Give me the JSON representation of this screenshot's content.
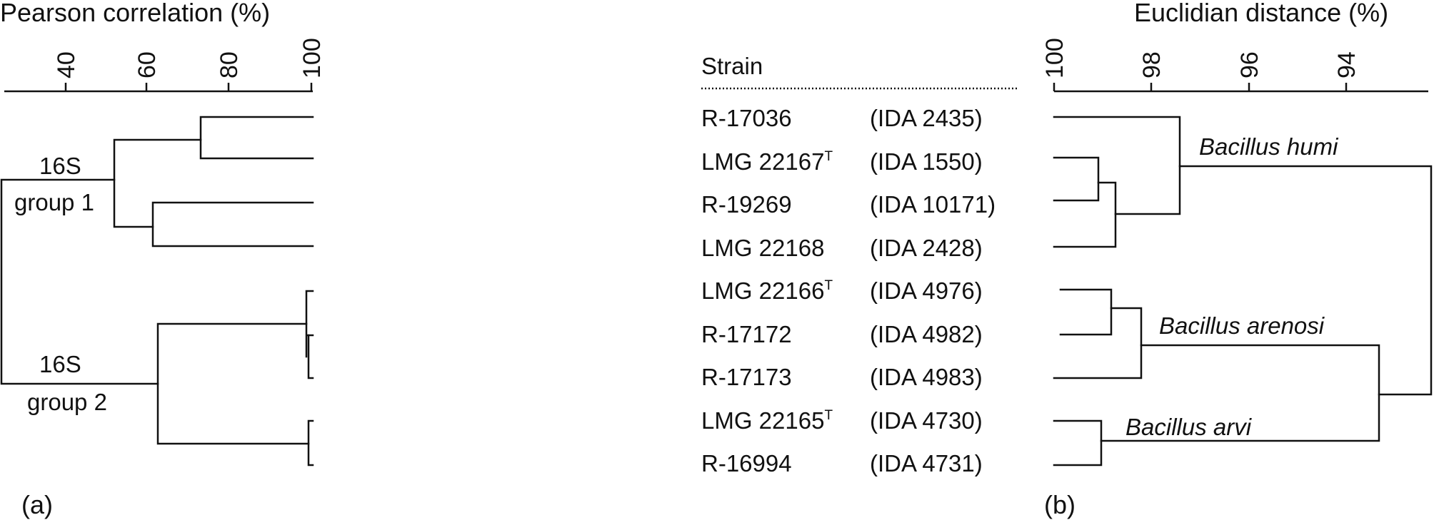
{
  "panel_a": {
    "label": "(a)",
    "axis_title": "Pearson correlation (%)",
    "ticks": [
      "40",
      "60",
      "80",
      "100"
    ],
    "group1_line1": "16S",
    "group1_line2": "group 1",
    "group2_line1": "16S",
    "group2_line2": "group 2"
  },
  "panel_b": {
    "label": "(b)",
    "axis_title": "Euclidian distance (%)",
    "ticks": [
      "100",
      "98",
      "96",
      "94"
    ],
    "strain_header": "Strain",
    "strains": [
      {
        "name": "R-17036",
        "sup": "",
        "ida": "(IDA 2435)"
      },
      {
        "name": "LMG 22167",
        "sup": "T",
        "ida": "(IDA 1550)"
      },
      {
        "name": "R-19269",
        "sup": "",
        "ida": "(IDA 10171)"
      },
      {
        "name": "LMG 22168",
        "sup": "",
        "ida": "(IDA 2428)"
      },
      {
        "name": "LMG 22166",
        "sup": "T",
        "ida": "(IDA 4976)"
      },
      {
        "name": "R-17172",
        "sup": "",
        "ida": "(IDA 4982)"
      },
      {
        "name": "R-17173",
        "sup": "",
        "ida": "(IDA 4983)"
      },
      {
        "name": "LMG 22165",
        "sup": "T",
        "ida": "(IDA 4730)"
      },
      {
        "name": "R-16994",
        "sup": "",
        "ida": "(IDA 4731)"
      }
    ],
    "species": [
      "Bacillus humi",
      "Bacillus arenosi",
      "Bacillus arvi"
    ]
  }
}
